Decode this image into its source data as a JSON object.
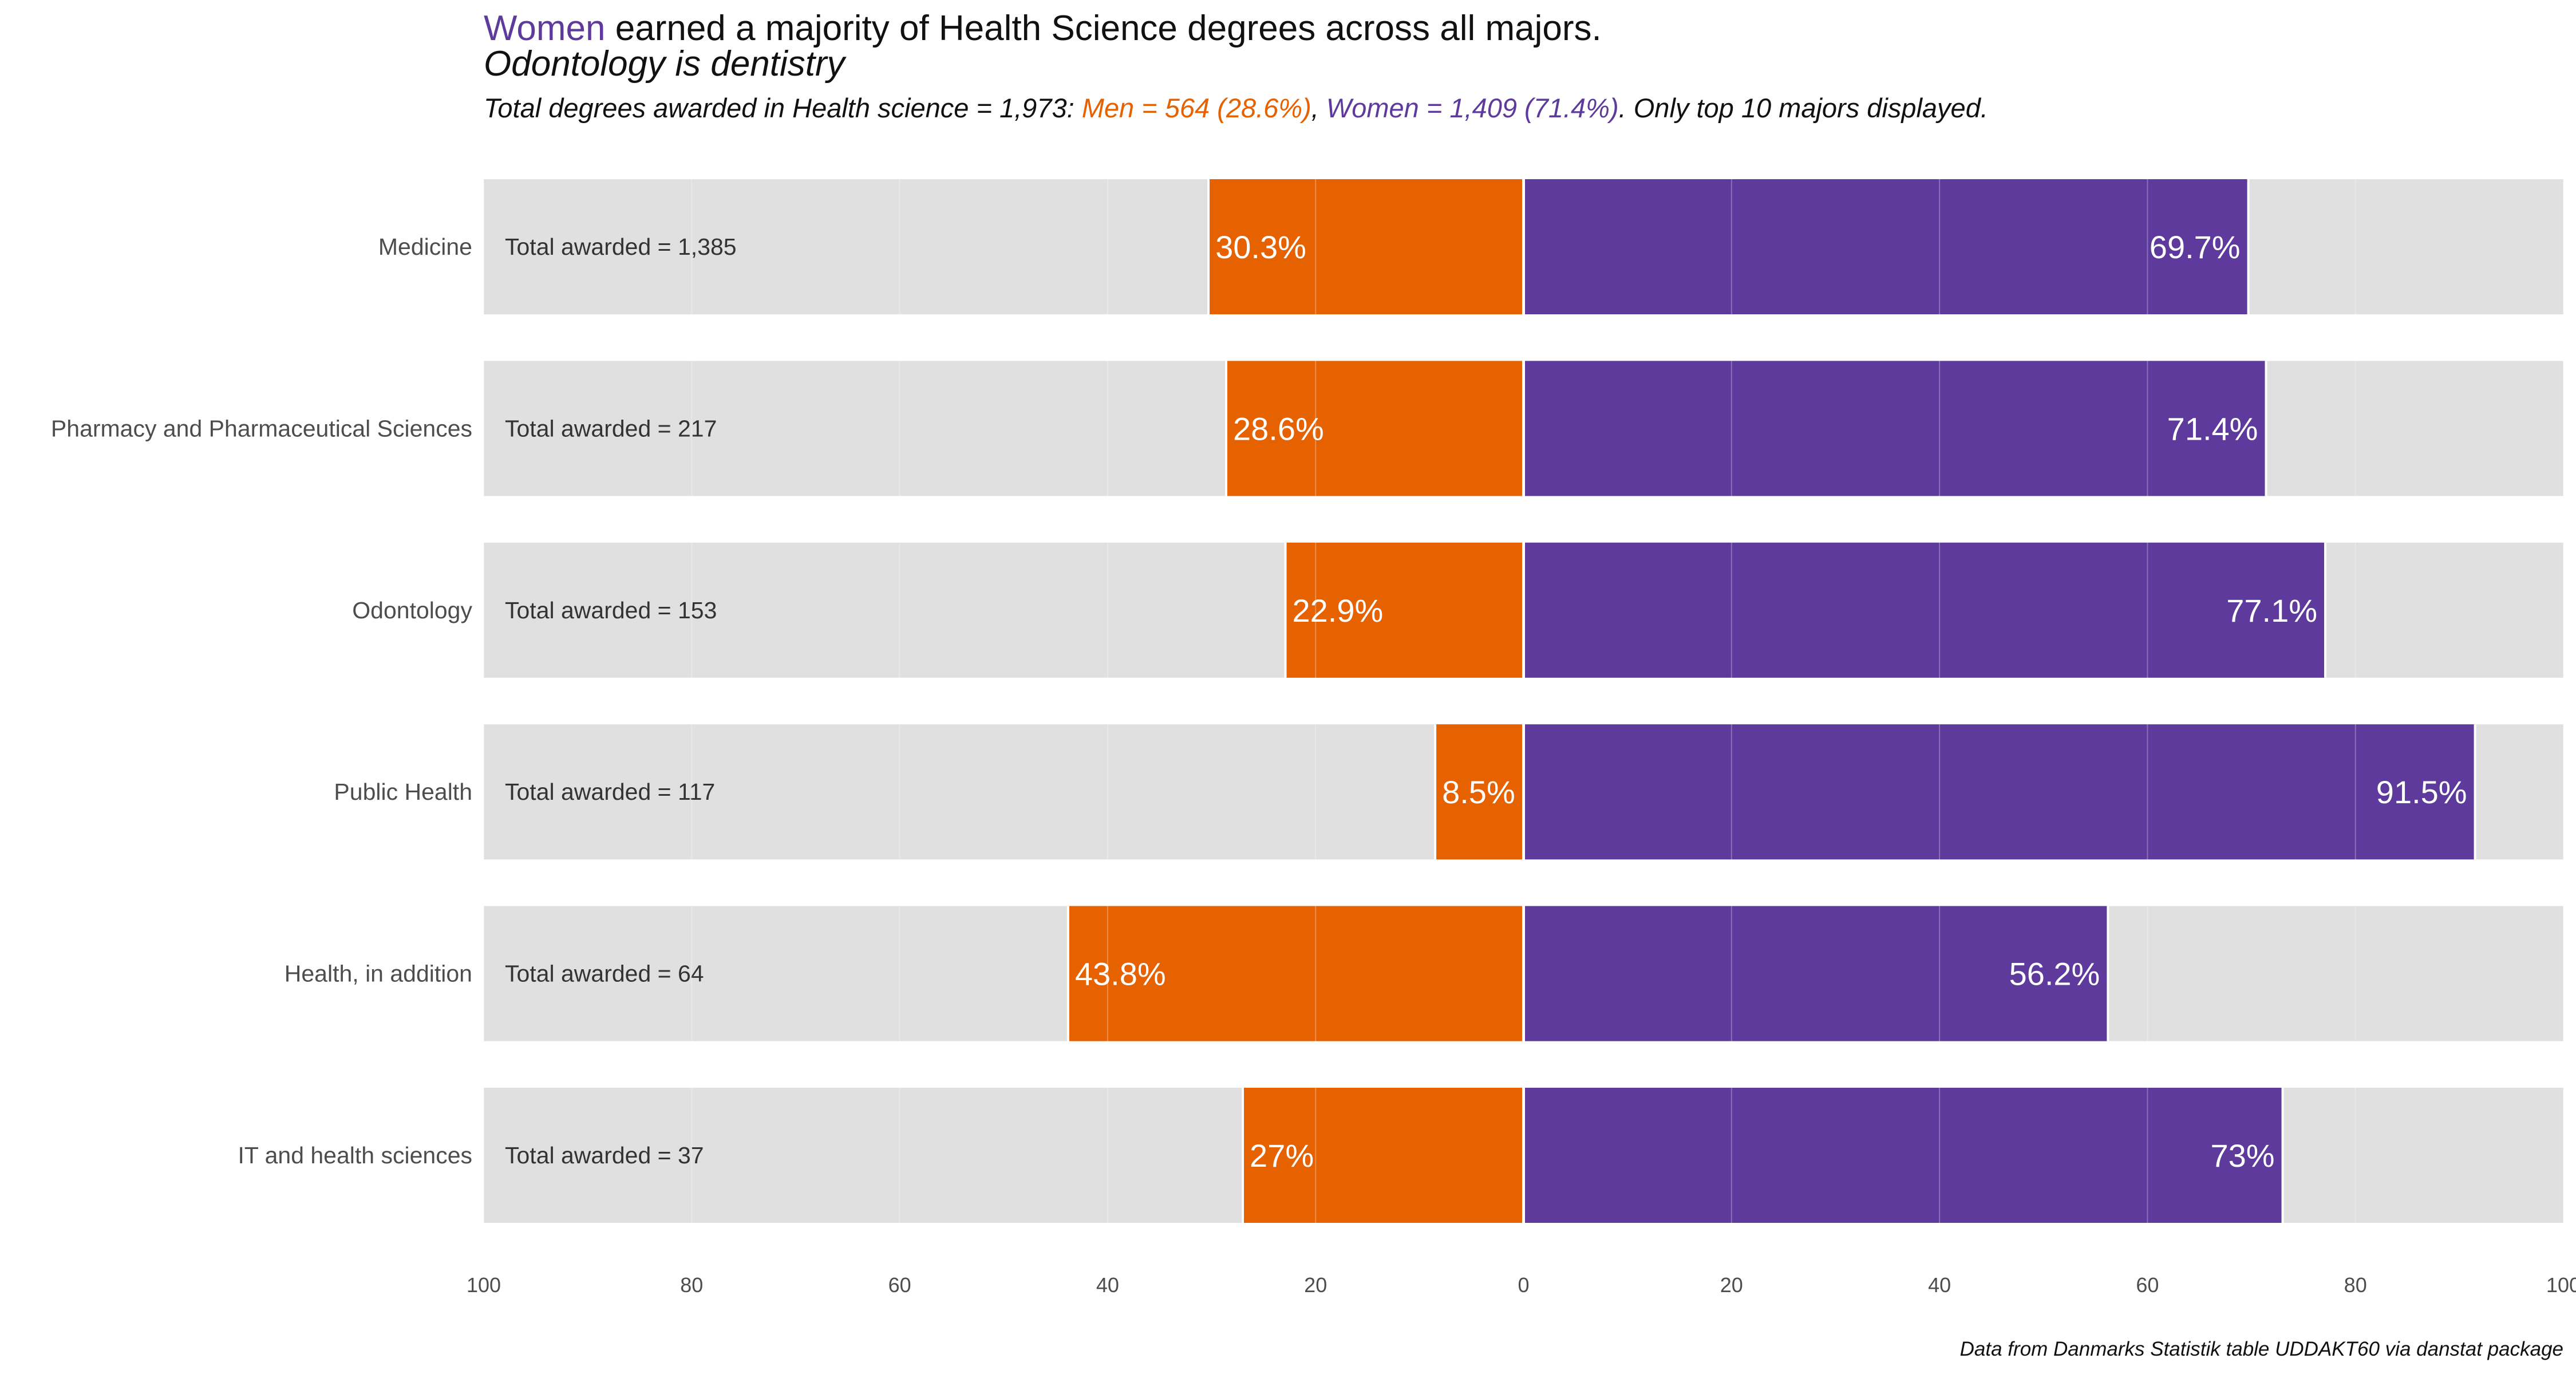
{
  "chart_data": {
    "type": "bar",
    "orientation": "horizontal-diverging",
    "title": {
      "highlight": "Women",
      "rest": " earned a majority of Health Science degrees across all majors."
    },
    "title_line2": "Odontology is dentistry",
    "subtitle": {
      "prefix": "Total degrees awarded in Health science = 1,973: ",
      "men": "Men = 564 (28.6%)",
      "sep": ", ",
      "women": "Women = 1,409 (71.4%)",
      "suffix": ". Only top 10 majors displayed."
    },
    "caption": "Data from Danmarks Statistik table UDDAKT60 via danstat package",
    "categories": [
      "Medicine",
      "Pharmacy and Pharmaceutical Sciences",
      "Odontology",
      "Public Health",
      "Health, in addition",
      "IT and health sciences"
    ],
    "totals": [
      "Total awarded = 1,385",
      "Total awarded = 217",
      "Total awarded = 153",
      "Total awarded = 117",
      "Total awarded = 64",
      "Total awarded = 37"
    ],
    "series": [
      {
        "values": [
          30.3,
          28.6,
          22.9,
          8.5,
          43.8,
          27.0
        ],
        "labels": [
          "30.3%",
          "28.6%",
          "22.9%",
          "8.5%",
          "43.8%",
          "27%"
        ],
        "color": "#E66100",
        "direction": "left"
      },
      {
        "values": [
          69.7,
          71.4,
          77.1,
          91.5,
          56.2,
          73.0
        ],
        "labels": [
          "69.7%",
          "71.4%",
          "77.1%",
          "91.5%",
          "56.2%",
          "73%"
        ],
        "color": "#5D3A9B",
        "direction": "right"
      }
    ],
    "xlim": [
      -100,
      100
    ],
    "x_ticks": [
      -100,
      -80,
      -60,
      -40,
      -20,
      0,
      20,
      40,
      60,
      80,
      100
    ],
    "x_tick_labels": [
      "100",
      "80",
      "60",
      "40",
      "20",
      "0",
      "20",
      "40",
      "60",
      "80",
      "100"
    ],
    "background_bar_color": "#E0E0E0",
    "grid": true,
    "legend": "none"
  }
}
